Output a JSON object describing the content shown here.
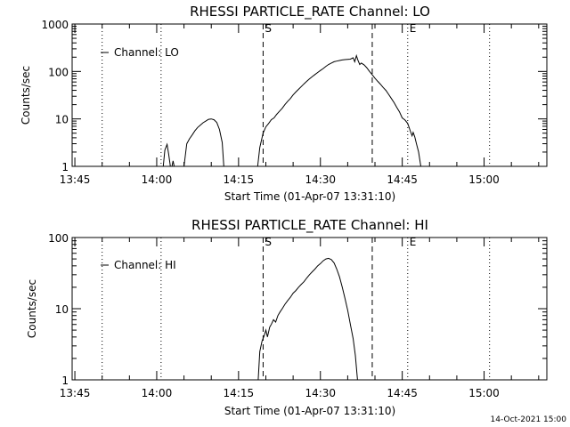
{
  "footer_timestamp": "14-Oct-2021 15:00",
  "chart_data": [
    {
      "type": "line",
      "title": "RHESSI PARTICLE_RATE Channel: LO",
      "xlabel": "Start Time (01-Apr-07 13:31:10)",
      "ylabel": "Counts/sec",
      "y_scale": "log",
      "ylim": [
        1,
        1000
      ],
      "xlim_minutes": [
        13.5,
        100.5
      ],
      "x_ticks": [
        {
          "label": "13:45",
          "min": 14
        },
        {
          "label": "14:00",
          "min": 29
        },
        {
          "label": "14:15",
          "min": 44
        },
        {
          "label": "14:30",
          "min": 59
        },
        {
          "label": "14:45",
          "min": 74
        },
        {
          "label": "15:00",
          "min": 89
        }
      ],
      "y_ticks": [
        {
          "label": "1",
          "value": 1
        },
        {
          "label": "10",
          "value": 10
        },
        {
          "label": "100",
          "value": 100
        },
        {
          "label": "1000",
          "value": 1000
        }
      ],
      "legend": {
        "label": "Channel: LO",
        "position": "top-left"
      },
      "markers": [
        {
          "label": "S",
          "min": 48.5,
          "style": "dashed"
        },
        {
          "label": "",
          "min": 68.5,
          "style": "dashed"
        },
        {
          "label": "E",
          "min": 75.0,
          "style": "dotted"
        },
        {
          "label": "",
          "min": 29.8,
          "style": "dotted"
        },
        {
          "label": "",
          "min": 90.0,
          "style": "dotted"
        },
        {
          "label": "",
          "min": 19.0,
          "style": "dotted"
        }
      ],
      "series": [
        {
          "segments": [
            [
              [
                30.2,
                1.0
              ],
              [
                30.5,
                2.2
              ],
              [
                30.9,
                2.9
              ],
              [
                31.2,
                1.8
              ],
              [
                31.5,
                1.0
              ]
            ],
            [
              [
                31.8,
                1.0
              ],
              [
                32.0,
                1.3
              ],
              [
                32.2,
                1.0
              ]
            ],
            [
              [
                34.0,
                1.0
              ],
              [
                34.5,
                3.0
              ],
              [
                35.0,
                3.8
              ],
              [
                35.5,
                4.6
              ],
              [
                36.0,
                5.6
              ],
              [
                36.5,
                6.6
              ],
              [
                37.0,
                7.4
              ],
              [
                37.5,
                8.3
              ],
              [
                38.0,
                9.0
              ],
              [
                38.5,
                9.8
              ],
              [
                39.0,
                10.0
              ],
              [
                39.5,
                9.6
              ],
              [
                40.0,
                8.4
              ],
              [
                40.5,
                6.0
              ],
              [
                41.0,
                3.2
              ],
              [
                41.3,
                1.0
              ]
            ],
            [
              [
                47.5,
                1.0
              ],
              [
                47.9,
                2.5
              ],
              [
                48.5,
                5.0
              ],
              [
                49.0,
                6.8
              ],
              [
                49.5,
                8.0
              ],
              [
                50.0,
                9.6
              ],
              [
                50.5,
                10.5
              ],
              [
                51.0,
                12.5
              ],
              [
                51.5,
                14.5
              ],
              [
                52.0,
                16.8
              ],
              [
                52.5,
                20.0
              ],
              [
                53.0,
                23.5
              ],
              [
                53.5,
                27.0
              ],
              [
                54.0,
                32.0
              ],
              [
                54.5,
                37.0
              ],
              [
                55.0,
                42.0
              ],
              [
                55.5,
                48.0
              ],
              [
                56.0,
                55.0
              ],
              [
                56.5,
                62.0
              ],
              [
                57.0,
                70.0
              ],
              [
                57.5,
                78.0
              ],
              [
                58.0,
                86.0
              ],
              [
                58.5,
                95.0
              ],
              [
                59.0,
                105.0
              ],
              [
                59.5,
                115.0
              ],
              [
                60.0,
                128.0
              ],
              [
                60.5,
                140.0
              ],
              [
                61.0,
                150.0
              ],
              [
                61.5,
                160.0
              ],
              [
                62.0,
                165.0
              ],
              [
                62.5,
                170.0
              ],
              [
                63.0,
                175.0
              ],
              [
                63.5,
                178.0
              ],
              [
                64.0,
                180.0
              ],
              [
                64.5,
                182.0
              ],
              [
                65.0,
                195.0
              ],
              [
                65.3,
                160.0
              ],
              [
                65.6,
                215.0
              ],
              [
                65.9,
                170.0
              ],
              [
                66.2,
                140.0
              ],
              [
                66.5,
                150.0
              ],
              [
                67.0,
                138.0
              ],
              [
                67.5,
                120.0
              ],
              [
                68.0,
                100.0
              ],
              [
                68.5,
                85.0
              ],
              [
                69.0,
                72.0
              ],
              [
                69.5,
                62.0
              ],
              [
                70.0,
                54.0
              ],
              [
                70.5,
                46.0
              ],
              [
                71.0,
                40.0
              ],
              [
                71.5,
                33.0
              ],
              [
                72.0,
                27.0
              ],
              [
                72.5,
                22.0
              ],
              [
                73.0,
                17.5
              ],
              [
                73.5,
                14.0
              ],
              [
                74.0,
                10.5
              ],
              [
                74.5,
                9.5
              ],
              [
                75.0,
                8.0
              ],
              [
                75.5,
                5.5
              ],
              [
                75.8,
                4.4
              ],
              [
                76.0,
                5.2
              ],
              [
                76.3,
                4.2
              ],
              [
                76.6,
                3.0
              ],
              [
                77.0,
                2.0
              ],
              [
                77.4,
                1.0
              ]
            ]
          ]
        }
      ]
    },
    {
      "type": "line",
      "title": "RHESSI PARTICLE_RATE Channel: HI",
      "xlabel": "Start Time (01-Apr-07 13:31:10)",
      "ylabel": "Counts/sec",
      "y_scale": "log",
      "ylim": [
        1,
        100
      ],
      "xlim_minutes": [
        13.5,
        100.5
      ],
      "x_ticks": [
        {
          "label": "13:45",
          "min": 14
        },
        {
          "label": "14:00",
          "min": 29
        },
        {
          "label": "14:15",
          "min": 44
        },
        {
          "label": "14:30",
          "min": 59
        },
        {
          "label": "14:45",
          "min": 74
        },
        {
          "label": "15:00",
          "min": 89
        }
      ],
      "y_ticks": [
        {
          "label": "1",
          "value": 1
        },
        {
          "label": "10",
          "value": 10
        },
        {
          "label": "100",
          "value": 100
        }
      ],
      "legend": {
        "label": "Channel: HI",
        "position": "top-left"
      },
      "markers": [
        {
          "label": "S",
          "min": 48.5,
          "style": "dashed"
        },
        {
          "label": "",
          "min": 68.5,
          "style": "dashed"
        },
        {
          "label": "E",
          "min": 75.0,
          "style": "dotted"
        },
        {
          "label": "",
          "min": 29.8,
          "style": "dotted"
        },
        {
          "label": "",
          "min": 90.0,
          "style": "dotted"
        },
        {
          "label": "",
          "min": 19.0,
          "style": "dotted"
        }
      ],
      "series": [
        {
          "segments": [
            [
              [
                47.6,
                1.0
              ],
              [
                47.9,
                2.5
              ],
              [
                48.3,
                3.5
              ],
              [
                48.7,
                4.2
              ],
              [
                49.0,
                5.0
              ],
              [
                49.3,
                4.0
              ],
              [
                49.7,
                5.5
              ],
              [
                50.0,
                6.0
              ],
              [
                50.4,
                7.0
              ],
              [
                50.8,
                6.5
              ],
              [
                51.2,
                8.0
              ],
              [
                51.6,
                9.0
              ],
              [
                52.0,
                10.0
              ],
              [
                52.5,
                11.5
              ],
              [
                53.0,
                13.0
              ],
              [
                53.5,
                14.5
              ],
              [
                54.0,
                16.5
              ],
              [
                54.5,
                18.0
              ],
              [
                55.0,
                20.0
              ],
              [
                55.5,
                22.0
              ],
              [
                56.0,
                24.0
              ],
              [
                56.5,
                27.0
              ],
              [
                57.0,
                30.0
              ],
              [
                57.5,
                33.0
              ],
              [
                58.0,
                36.0
              ],
              [
                58.5,
                40.0
              ],
              [
                59.0,
                43.0
              ],
              [
                59.5,
                47.0
              ],
              [
                60.0,
                50.0
              ],
              [
                60.5,
                51.0
              ],
              [
                61.0,
                49.0
              ],
              [
                61.5,
                44.0
              ],
              [
                62.0,
                36.0
              ],
              [
                62.5,
                28.0
              ],
              [
                63.0,
                20.0
              ],
              [
                63.5,
                14.0
              ],
              [
                64.0,
                9.5
              ],
              [
                64.5,
                6.0
              ],
              [
                65.0,
                3.8
              ],
              [
                65.4,
                2.2
              ],
              [
                65.8,
                1.0
              ]
            ]
          ]
        }
      ]
    }
  ]
}
